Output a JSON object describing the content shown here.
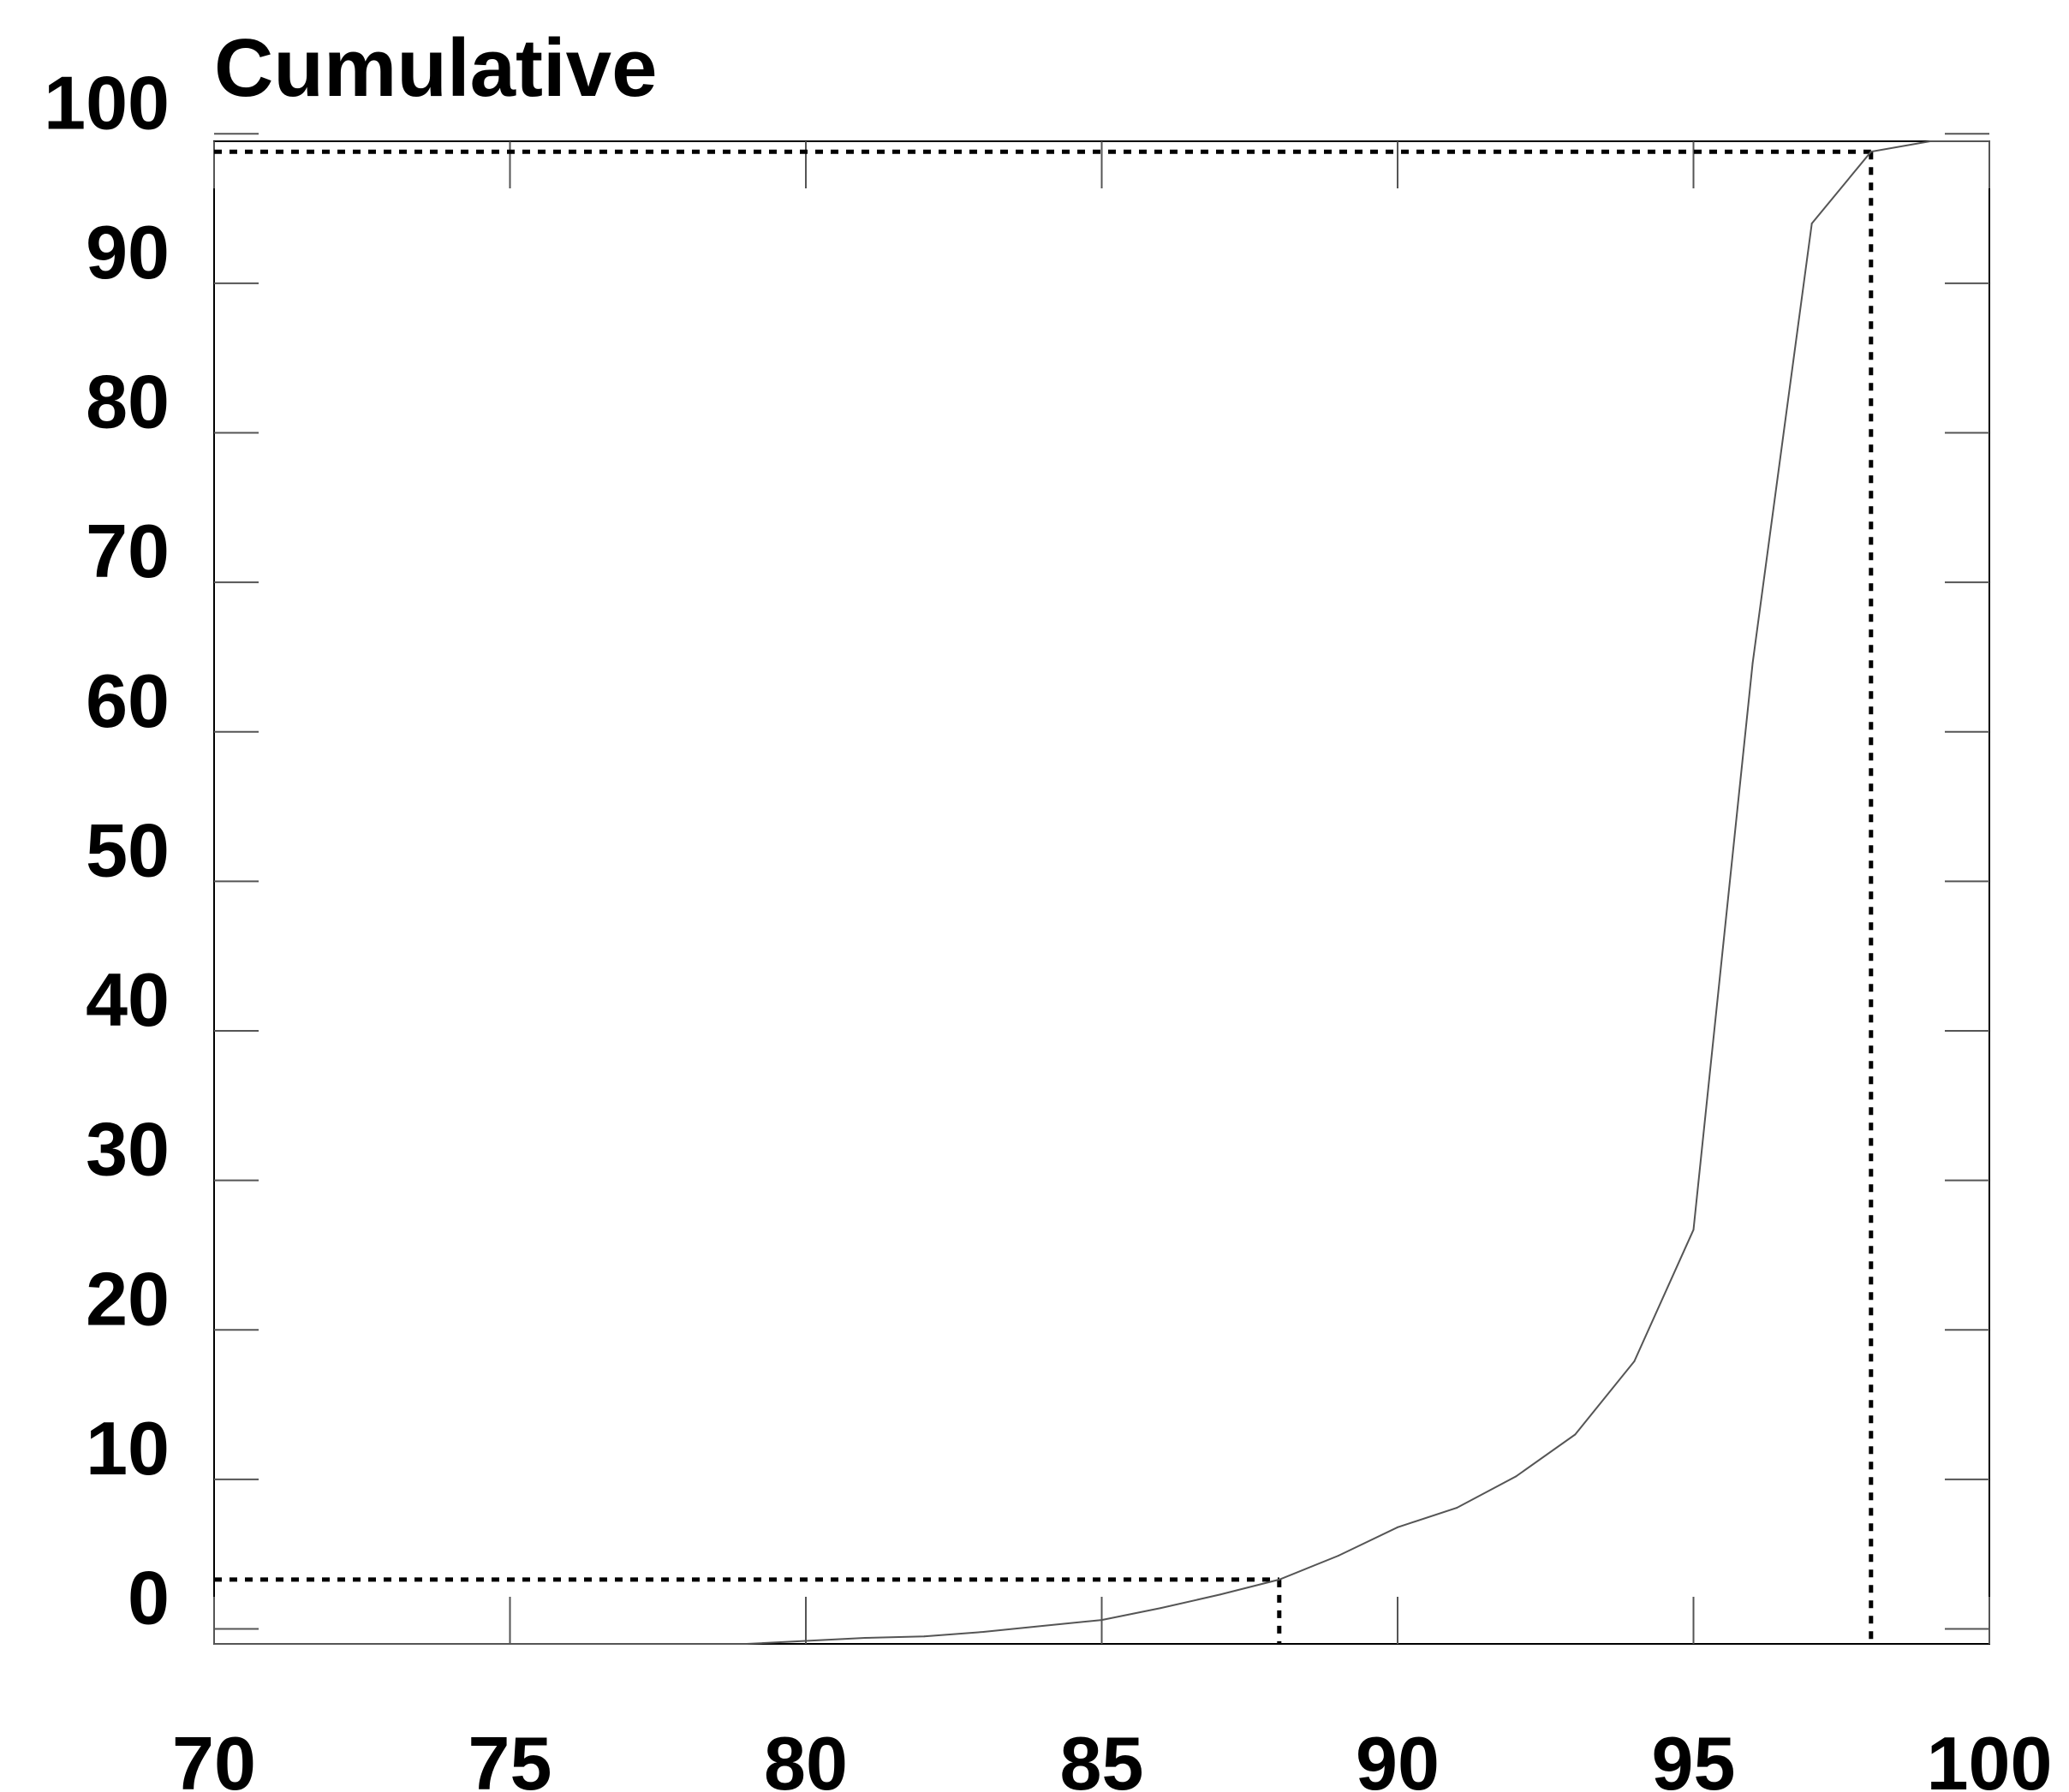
{
  "chart_data": {
    "type": "line",
    "title": "Cumulative",
    "xlabel": "",
    "ylabel": "",
    "xlim": [
      70,
      100
    ],
    "ylim": [
      -1,
      99.5
    ],
    "x_ticks": [
      70,
      75,
      80,
      85,
      90,
      95,
      100
    ],
    "x_tick_labels": [
      "70",
      "75",
      "80",
      "85",
      "90",
      "95",
      "100"
    ],
    "y_ticks": [
      0,
      10,
      20,
      30,
      40,
      50,
      60,
      70,
      80,
      90,
      100
    ],
    "y_tick_labels": [
      "0",
      "10",
      "20",
      "30",
      "40",
      "50",
      "60",
      "70",
      "80",
      "90",
      "100"
    ],
    "grid": false,
    "colors": {
      "line": "#555555",
      "axes": "#000000",
      "reference": "#000000"
    },
    "series": [
      {
        "x": [
          70,
          75,
          79,
          80,
          81,
          82,
          83,
          84,
          85,
          86,
          87,
          88,
          89,
          90,
          91,
          92,
          93,
          94,
          95,
          96,
          97,
          98,
          99,
          100
        ],
        "values": [
          -1,
          -1,
          -1,
          -0.8,
          -0.6,
          -0.5,
          -0.2,
          0.2,
          0.6,
          1.4,
          2.3,
          3.3,
          4.9,
          6.8,
          8.1,
          10.2,
          13.0,
          17.9,
          26.7,
          64.6,
          94.0,
          98.8,
          99.5,
          99.5
        ]
      }
    ],
    "reference_lines": [
      {
        "x": 88,
        "y": 3.3
      },
      {
        "x": 98,
        "y": 98.8
      }
    ]
  }
}
